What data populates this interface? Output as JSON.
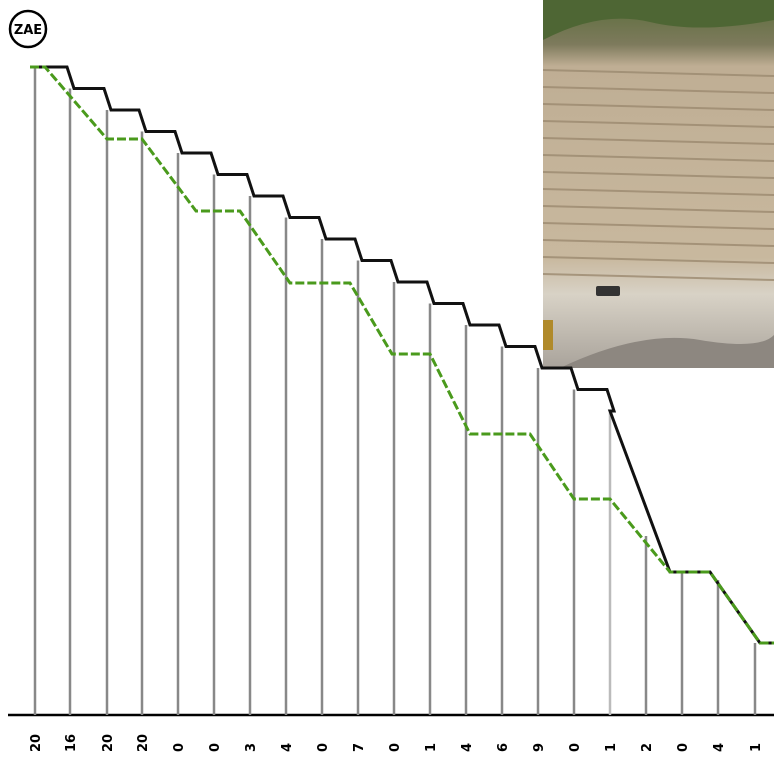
{
  "badge": "ZAE",
  "labels": [
    "20",
    "16",
    "20",
    "20",
    "0",
    "0",
    "3",
    "4",
    "0",
    "7",
    "0",
    "1",
    "4",
    "6",
    "9",
    "0",
    "1",
    "2",
    "0",
    "4",
    "1"
  ]
}
